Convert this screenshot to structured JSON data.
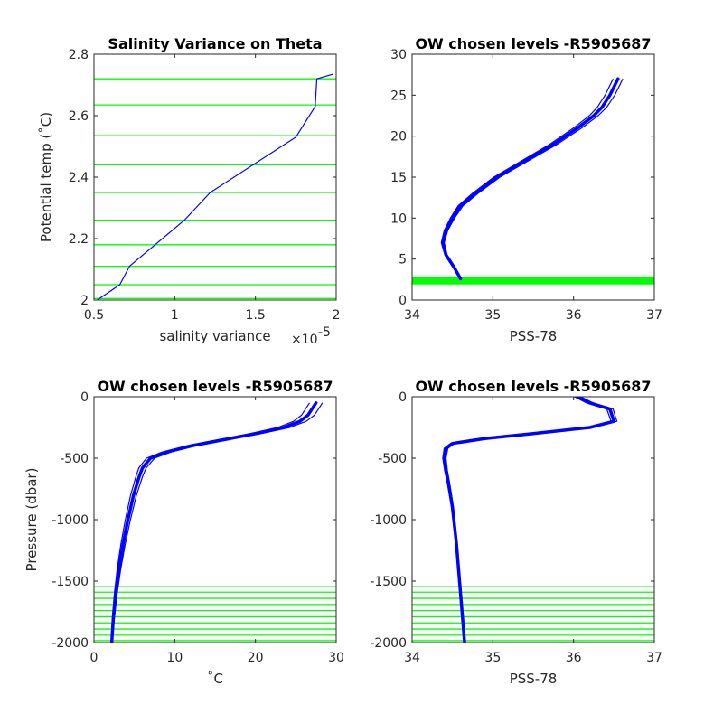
{
  "chart_data": [
    {
      "type": "line",
      "title": "Salinity Variance on Theta",
      "xlabel": "salinity variance",
      "x_exponent_label": "×10",
      "x_exponent": "-5",
      "ylabel": "Potential temp (˚C)",
      "xlim": [
        0.5,
        2.0
      ],
      "ylim": [
        2.0,
        2.8
      ],
      "xticks": [
        "0.5",
        "1",
        "1.5",
        "2"
      ],
      "yticks": [
        "2",
        "2.2",
        "2.4",
        "2.6",
        "2.8"
      ],
      "series": [
        {
          "color": "#0000ff",
          "x": [
            0.52,
            0.66,
            0.72,
            1.06,
            1.22,
            1.75,
            1.87,
            1.88,
            1.98
          ],
          "y": [
            2.0,
            2.05,
            2.11,
            2.26,
            2.35,
            2.53,
            2.63,
            2.72,
            2.735
          ]
        }
      ],
      "hlines": {
        "color": "#00ff00",
        "y": [
          2.005,
          2.05,
          2.11,
          2.18,
          2.26,
          2.35,
          2.44,
          2.535,
          2.635,
          2.72
        ]
      }
    },
    {
      "type": "line",
      "title": "OW chosen levels -R5905687",
      "xlabel": "PSS-78",
      "ylabel": "",
      "xlim": [
        34,
        37
      ],
      "ylim": [
        0,
        30
      ],
      "xticks": [
        "34",
        "35",
        "36",
        "37"
      ],
      "yticks": [
        "0",
        "5",
        "10",
        "15",
        "20",
        "25",
        "30"
      ],
      "series": [
        {
          "color": "#0000ff",
          "x": [
            34.6,
            34.52,
            34.42,
            34.38,
            34.42,
            34.5,
            34.6,
            34.78,
            35.05,
            35.4,
            35.75,
            36.05,
            36.25,
            36.35,
            36.45,
            36.55
          ],
          "y": [
            2.6,
            4.0,
            5.5,
            7.0,
            8.5,
            10.0,
            11.5,
            13.0,
            15.0,
            17.0,
            19.0,
            21.0,
            22.5,
            23.5,
            25.0,
            27.0
          ]
        }
      ],
      "hband": {
        "color": "#00ff00",
        "y": [
          1.9,
          2.8
        ]
      }
    },
    {
      "type": "line",
      "title": "OW chosen levels -R5905687",
      "xlabel": "˚C",
      "ylabel": "Pressure (dbar)",
      "xlim": [
        0,
        30
      ],
      "ylim": [
        -2000,
        0
      ],
      "xticks": [
        "0",
        "10",
        "20",
        "30"
      ],
      "yticks": [
        "-2000",
        "-1500",
        "-1000",
        "-500",
        "0"
      ],
      "series": [
        {
          "color": "#0000ff",
          "x": [
            2.2,
            2.4,
            2.7,
            3.1,
            3.6,
            4.2,
            4.9,
            5.6,
            6.0,
            7.0,
            9.0,
            12.0,
            16.0,
            20.0,
            23.5,
            25.5,
            26.5,
            27.5
          ],
          "y": [
            -2000,
            -1800,
            -1600,
            -1400,
            -1200,
            -1000,
            -800,
            -650,
            -580,
            -500,
            -450,
            -400,
            -350,
            -300,
            -250,
            -200,
            -150,
            -50
          ]
        }
      ],
      "hlines": {
        "color": "#00ff00",
        "y": [
          -1545,
          -1590,
          -1640,
          -1690,
          -1740,
          -1790,
          -1840,
          -1890,
          -1940,
          -1985
        ]
      }
    },
    {
      "type": "line",
      "title": "OW chosen levels -R5905687",
      "xlabel": "PSS-78",
      "ylabel": "",
      "xlim": [
        34,
        37
      ],
      "ylim": [
        -2000,
        0
      ],
      "xticks": [
        "34",
        "35",
        "36",
        "37"
      ],
      "yticks": [
        "-2000",
        "-1500",
        "-1000",
        "-500",
        "0"
      ],
      "series": [
        {
          "color": "#0000ff",
          "x": [
            34.65,
            34.6,
            34.55,
            34.5,
            34.45,
            34.42,
            34.4,
            34.42,
            34.5,
            34.9,
            35.5,
            36.2,
            36.5,
            36.45,
            36.2,
            36.05
          ],
          "y": [
            -2000,
            -1600,
            -1200,
            -900,
            -700,
            -600,
            -500,
            -420,
            -380,
            -340,
            -300,
            -250,
            -200,
            -100,
            -50,
            0
          ]
        }
      ],
      "hlines": {
        "color": "#00ff00",
        "y": [
          -1545,
          -1590,
          -1640,
          -1690,
          -1740,
          -1790,
          -1840,
          -1890,
          -1940,
          -1985
        ]
      }
    }
  ]
}
